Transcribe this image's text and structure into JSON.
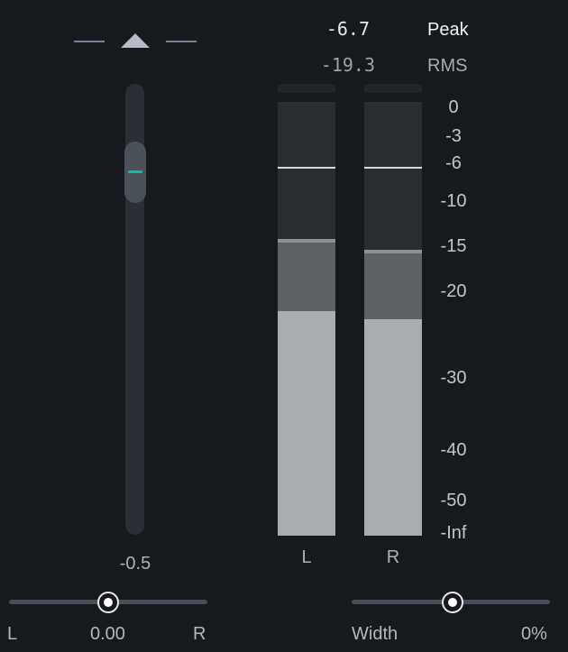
{
  "fader": {
    "value": "-0.5",
    "up_label": "increase-gain"
  },
  "meters": {
    "peak_value": "-6.7",
    "peak_label": "Peak",
    "rms_value": "-19.3",
    "rms_label": "RMS",
    "channels": [
      {
        "label": "L"
      },
      {
        "label": "R"
      }
    ],
    "scale": [
      "0",
      "-3",
      "-6",
      "-10",
      "-15",
      "-20",
      "-30",
      "-40",
      "-50",
      "-Inf"
    ]
  },
  "pan": {
    "left_label": "L",
    "value": "0.00",
    "right_label": "R",
    "position": 0.5
  },
  "width": {
    "label": "Width",
    "value": "0%",
    "position": 0.5
  },
  "colors": {
    "background": "#16191d",
    "accent": "#1bb3b3",
    "meter_fill": "#a8adb1"
  }
}
